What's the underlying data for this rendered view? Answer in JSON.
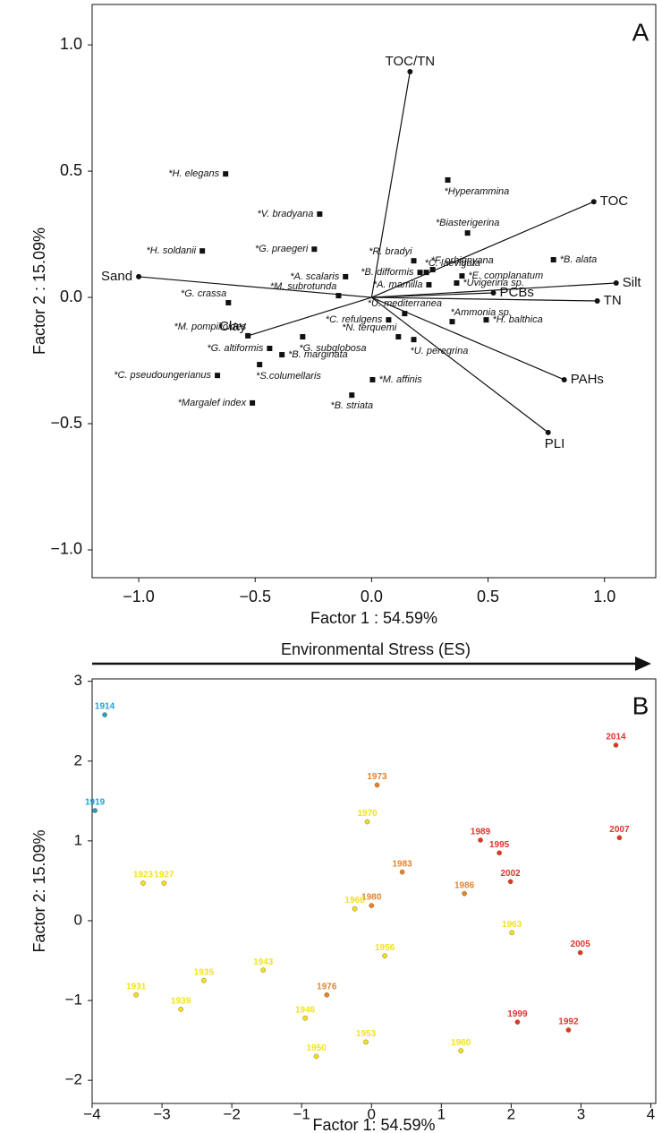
{
  "chart_data": [
    {
      "type": "biplot",
      "panel_label": "A",
      "x_label": "Factor 1 : 54.59%",
      "y_label": "Factor 2 : 15.09%",
      "xlim": [
        -1.2,
        1.22
      ],
      "ylim": [
        -1.11,
        1.16
      ],
      "xticks": [
        {
          "value": -1,
          "label": "−1.0"
        },
        {
          "value": -0.5,
          "label": "−0.5"
        },
        {
          "value": 0,
          "label": "0.0"
        },
        {
          "value": 0.5,
          "label": "0.5"
        },
        {
          "value": 1,
          "label": "1.0"
        }
      ],
      "yticks": [
        {
          "value": -1,
          "label": "−1.0"
        },
        {
          "value": -0.5,
          "label": "−0.5"
        },
        {
          "value": 0,
          "label": "0.0"
        },
        {
          "value": 0.5,
          "label": "0.5"
        },
        {
          "value": 1,
          "label": "1.0"
        }
      ],
      "vectors": {
        "labels": [
          "TOC/TN",
          "TOC",
          "Silt",
          "TN",
          "PCBs",
          "PAHs",
          "PLI",
          "Sand",
          "Clay"
        ],
        "x": [
          0.165,
          0.954,
          1.05,
          0.969,
          0.523,
          0.827,
          0.758,
          -1.0,
          -0.531
        ],
        "values": [
          0.894,
          0.379,
          0.057,
          -0.014,
          0.018,
          -0.326,
          -0.535,
          0.082,
          -0.152
        ]
      },
      "species": {
        "labels": [
          "*H. elegans",
          "*V. bradyana",
          "*Hyperammina",
          "*Biasterigerina",
          "*H. soldanii",
          "*G. praegeri",
          "*R. bradyi",
          "*C. laevigata",
          "*B. difformis",
          "*F. orbignyana",
          "*E. complanatum",
          "*Uvigerina sp.",
          "*A. mamilla",
          "*A. scalaris",
          "*G. crassa",
          "*M. subrotunda",
          "*B. alata",
          "*U. mediterranea",
          "*Ammonia sp.",
          "*H. balthica",
          "*C. refulgens",
          "*M. pompilioides",
          "*N. terquemi",
          "*G. subglobosa",
          "*U. peregrina",
          "*G. altiformis",
          "*B. marginata",
          "*S.columellaris",
          "*C. pseudoungerianus",
          "*M. affinis",
          "*B. striata",
          "*Margalef index"
        ],
        "x": [
          -0.627,
          -0.223,
          0.327,
          0.412,
          -0.727,
          -0.246,
          0.181,
          0.235,
          0.208,
          0.262,
          0.388,
          0.365,
          0.246,
          -0.112,
          -0.615,
          -0.142,
          0.781,
          0.142,
          0.346,
          0.492,
          0.073,
          -0.531,
          0.115,
          -0.296,
          0.181,
          -0.438,
          -0.385,
          -0.481,
          -0.662,
          0.004,
          -0.085,
          -0.512
        ],
        "values": [
          0.489,
          0.33,
          0.465,
          0.255,
          0.184,
          0.191,
          0.145,
          0.099,
          0.099,
          0.11,
          0.085,
          0.057,
          0.05,
          0.082,
          -0.021,
          0.007,
          0.149,
          -0.064,
          -0.096,
          -0.089,
          -0.089,
          -0.152,
          -0.156,
          -0.156,
          -0.167,
          -0.202,
          -0.227,
          -0.266,
          -0.309,
          -0.326,
          -0.387,
          -0.418
        ]
      }
    },
    {
      "type": "scatter",
      "panel_label": "B",
      "annotation": "Environmental Stress (ES)",
      "x_label": "Factor 1: 54.59%",
      "y_label": "Factor 2: 15.09%",
      "xlim": [
        -4,
        4.07
      ],
      "ylim": [
        -2.29,
        3.03
      ],
      "xticks": [
        {
          "value": -4,
          "label": "−4"
        },
        {
          "value": -3,
          "label": "−3"
        },
        {
          "value": -2,
          "label": "−2"
        },
        {
          "value": -1,
          "label": "−1"
        },
        0,
        1,
        2,
        3,
        4
      ],
      "yticks": [
        {
          "value": -2,
          "label": "−2"
        },
        {
          "value": -1,
          "label": "−1"
        },
        0,
        1,
        2,
        3
      ],
      "point_labels": [
        "1914",
        "1919",
        "2014",
        "1973",
        "1989",
        "1995",
        "2007",
        "1970",
        "1983",
        "2002",
        "1923",
        "1927",
        "1986",
        "1980",
        "1966",
        "1963",
        "1956",
        "2005",
        "1943",
        "1935",
        "1931",
        "1976",
        "1939",
        "1946",
        "1999",
        "1992",
        "1953",
        "1960",
        "1950"
      ],
      "x": [
        -3.82,
        -3.96,
        3.5,
        0.08,
        1.56,
        1.83,
        3.55,
        -0.06,
        0.44,
        1.99,
        -3.27,
        -2.97,
        1.33,
        0.0,
        -0.24,
        2.01,
        0.19,
        2.99,
        -1.55,
        -2.4,
        -3.37,
        -0.64,
        -2.73,
        -0.95,
        2.09,
        2.82,
        -0.08,
        1.28,
        -0.79
      ],
      "values": [
        2.58,
        1.38,
        2.2,
        1.7,
        1.01,
        0.85,
        1.04,
        1.24,
        0.61,
        0.49,
        0.47,
        0.47,
        0.34,
        0.19,
        0.15,
        -0.15,
        -0.44,
        -0.4,
        -0.62,
        -0.75,
        -0.93,
        -0.93,
        -1.11,
        -1.22,
        -1.27,
        -1.37,
        -1.52,
        -1.63,
        -1.7
      ],
      "colors": [
        "#1ba1d8",
        "#1ba1d8",
        "#e2332c",
        "#e5832e",
        "#e2332c",
        "#e2332c",
        "#e2332c",
        "#f2e21c",
        "#e5832e",
        "#e2332c",
        "#f2e21c",
        "#f2e21c",
        "#e5832e",
        "#e5832e",
        "#f2e21c",
        "#f2e21c",
        "#f2e21c",
        "#e2332c",
        "#f2e21c",
        "#f2e21c",
        "#f2e21c",
        "#e5832e",
        "#f2e21c",
        "#f2e21c",
        "#e2332c",
        "#e2332c",
        "#f2e21c",
        "#f2e21c",
        "#f2e21c"
      ]
    }
  ]
}
